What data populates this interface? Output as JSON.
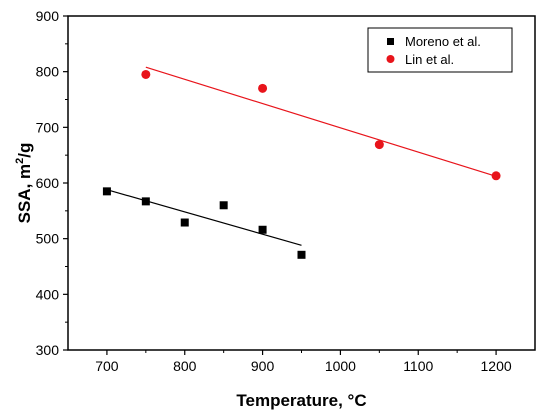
{
  "chart_data": {
    "type": "scatter",
    "xlabel": "Temperature, °C",
    "ylabel_main": "SSA, m",
    "ylabel_sup": "2",
    "ylabel_tail": "/g",
    "xlim": [
      650,
      1250
    ],
    "ylim": [
      300,
      900
    ],
    "xticks": [
      700,
      800,
      900,
      1000,
      1100,
      1200
    ],
    "yticks": [
      300,
      400,
      500,
      600,
      700,
      800,
      900
    ],
    "grid": false,
    "legend_position": "top-right",
    "series": [
      {
        "name": "Moreno et al.",
        "marker": "square",
        "color": "#000000",
        "points": [
          {
            "x": 700,
            "y": 585
          },
          {
            "x": 750,
            "y": 567
          },
          {
            "x": 800,
            "y": 529
          },
          {
            "x": 850,
            "y": 560
          },
          {
            "x": 900,
            "y": 516
          },
          {
            "x": 950,
            "y": 471
          }
        ],
        "fit_line": {
          "x": [
            700,
            950
          ],
          "y": [
            588,
            488
          ]
        }
      },
      {
        "name": "Lin et al.",
        "marker": "circle",
        "color": "#e8141b",
        "points": [
          {
            "x": 750,
            "y": 795
          },
          {
            "x": 900,
            "y": 770
          },
          {
            "x": 1050,
            "y": 669
          },
          {
            "x": 1200,
            "y": 613
          }
        ],
        "fit_line": {
          "x": [
            750,
            1200
          ],
          "y": [
            808,
            612
          ]
        }
      }
    ]
  }
}
